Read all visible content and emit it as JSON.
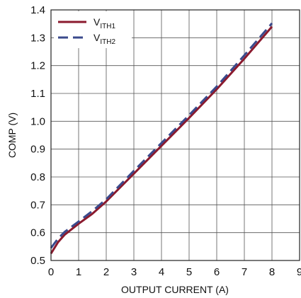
{
  "chart_data": {
    "type": "line",
    "xlabel": "OUTPUT CURRENT (A)",
    "ylabel": "COMP (V)",
    "xlim": [
      0,
      9
    ],
    "ylim": [
      0.5,
      1.4
    ],
    "x_ticks": [
      "0",
      "1",
      "2",
      "3",
      "4",
      "5",
      "6",
      "7",
      "8",
      "9"
    ],
    "y_ticks": [
      "0.5",
      "0.6",
      "0.7",
      "0.8",
      "0.9",
      "1.0",
      "1.1",
      "1.2",
      "1.3",
      "1.4"
    ],
    "grid": true,
    "legend_position": "top-left",
    "series": [
      {
        "name": "V_ITH1",
        "name_main": "V",
        "name_sub": "ITH1",
        "color": "#8b1a2e",
        "dash": "solid",
        "x": [
          0,
          0.25,
          0.5,
          1.0,
          1.5,
          2.0,
          3.0,
          4.0,
          5.0,
          6.0,
          7.0,
          8.0
        ],
        "y": [
          0.525,
          0.565,
          0.593,
          0.632,
          0.668,
          0.712,
          0.812,
          0.912,
          1.012,
          1.115,
          1.225,
          1.34
        ]
      },
      {
        "name": "V_ITH2",
        "name_main": "V",
        "name_sub": "ITH2",
        "color": "#3a4a8c",
        "dash": "dashed",
        "x": [
          0,
          0.25,
          0.5,
          1.0,
          1.5,
          2.0,
          3.0,
          4.0,
          5.0,
          6.0,
          7.0,
          8.0
        ],
        "y": [
          0.545,
          0.578,
          0.603,
          0.64,
          0.678,
          0.72,
          0.822,
          0.922,
          1.022,
          1.125,
          1.237,
          1.352
        ]
      }
    ]
  }
}
